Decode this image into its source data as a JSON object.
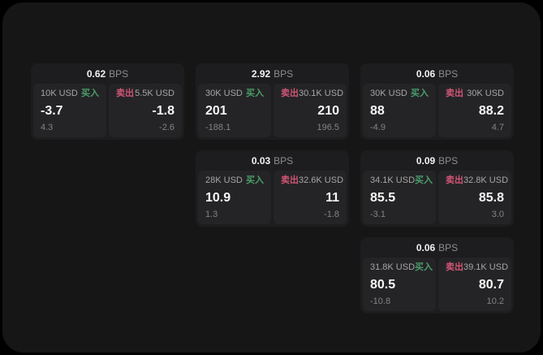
{
  "colors": {
    "outer_background": "#000000",
    "page_background": "#161616",
    "card_background": "#1d1d1f",
    "panel_background": "#242426",
    "buy_green": "#4b9d6b",
    "sell_red": "#d05575",
    "value_white": "#f6f6f6",
    "label_gray": "#a6a6a6",
    "sub_gray": "#838383"
  },
  "cards": [
    {
      "bps_value": "0.62",
      "bps_unit": "BPS",
      "buy": {
        "size": "10K USD",
        "side_label": "买入",
        "value": "-3.7",
        "sub": "4.3"
      },
      "sell": {
        "size": "5.5K USD",
        "side_label": "卖出",
        "value": "-1.8",
        "sub": "-2.6"
      }
    },
    {
      "bps_value": "2.92",
      "bps_unit": "BPS",
      "buy": {
        "size": "30K USD",
        "side_label": "买入",
        "value": "201",
        "sub": "-188.1"
      },
      "sell": {
        "size": "30.1K USD",
        "side_label": "卖出",
        "value": "210",
        "sub": "196.5"
      }
    },
    {
      "bps_value": "0.06",
      "bps_unit": "BPS",
      "buy": {
        "size": "30K USD",
        "side_label": "买入",
        "value": "88",
        "sub": "-4.9"
      },
      "sell": {
        "size": "30K USD",
        "side_label": "卖出",
        "value": "88.2",
        "sub": "4.7"
      }
    },
    {
      "bps_value": "0.03",
      "bps_unit": "BPS",
      "buy": {
        "size": "28K USD",
        "side_label": "买入",
        "value": "10.9",
        "sub": "1.3"
      },
      "sell": {
        "size": "32.6K USD",
        "side_label": "卖出",
        "value": "11",
        "sub": "-1.8"
      }
    },
    {
      "bps_value": "0.09",
      "bps_unit": "BPS",
      "buy": {
        "size": "34.1K USD",
        "side_label": "买入",
        "value": "85.5",
        "sub": "-3.1"
      },
      "sell": {
        "size": "32.8K USD",
        "side_label": "卖出",
        "value": "85.8",
        "sub": "3.0"
      }
    },
    {
      "bps_value": "0.06",
      "bps_unit": "BPS",
      "buy": {
        "size": "31.8K USD",
        "side_label": "买入",
        "value": "80.5",
        "sub": "-10.8"
      },
      "sell": {
        "size": "39.1K USD",
        "side_label": "卖出",
        "value": "80.7",
        "sub": "10.2"
      }
    }
  ]
}
